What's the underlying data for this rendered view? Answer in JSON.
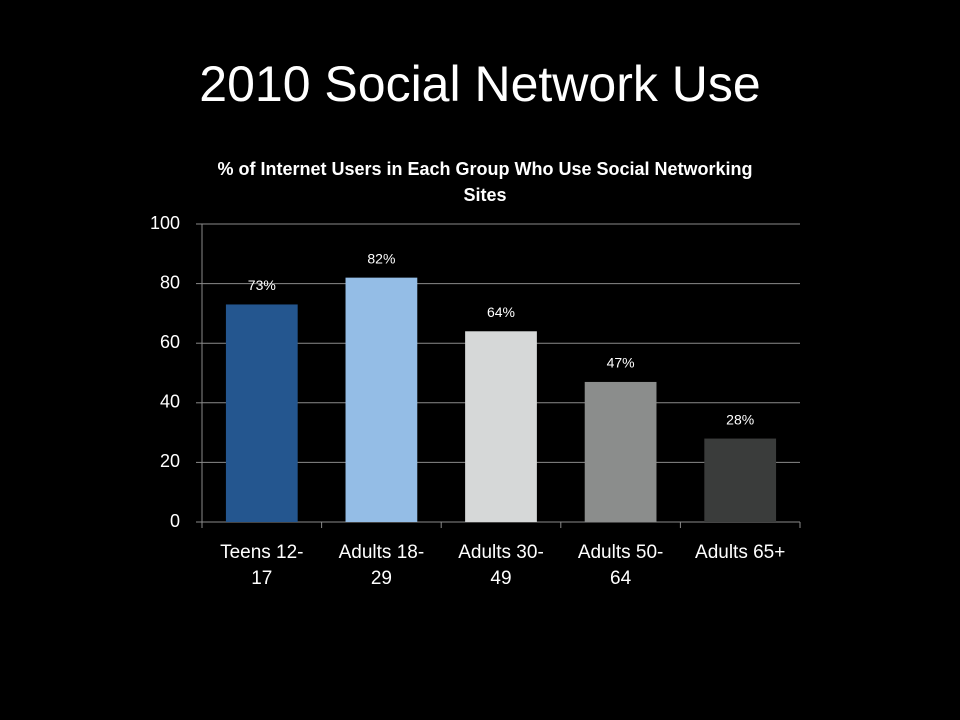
{
  "slide_title": "2010 Social Network Use",
  "chart_data": {
    "type": "bar",
    "title": "% of Internet Users in Each Group Who Use Social Networking Sites",
    "categories": [
      "Teens 12-17",
      "Adults 18-29",
      "Adults 30-49",
      "Adults 50-64",
      "Adults 65+"
    ],
    "values": [
      73,
      82,
      64,
      47,
      28
    ],
    "value_labels": [
      "73%",
      "82%",
      "64%",
      "47%",
      "28%"
    ],
    "colors": [
      "#24568f",
      "#94bde6",
      "#d6d8d8",
      "#8b8d8c",
      "#3a3c3b"
    ],
    "ylim": [
      0,
      100
    ],
    "yticks": [
      0,
      20,
      40,
      60,
      80,
      100
    ],
    "grid": true
  }
}
